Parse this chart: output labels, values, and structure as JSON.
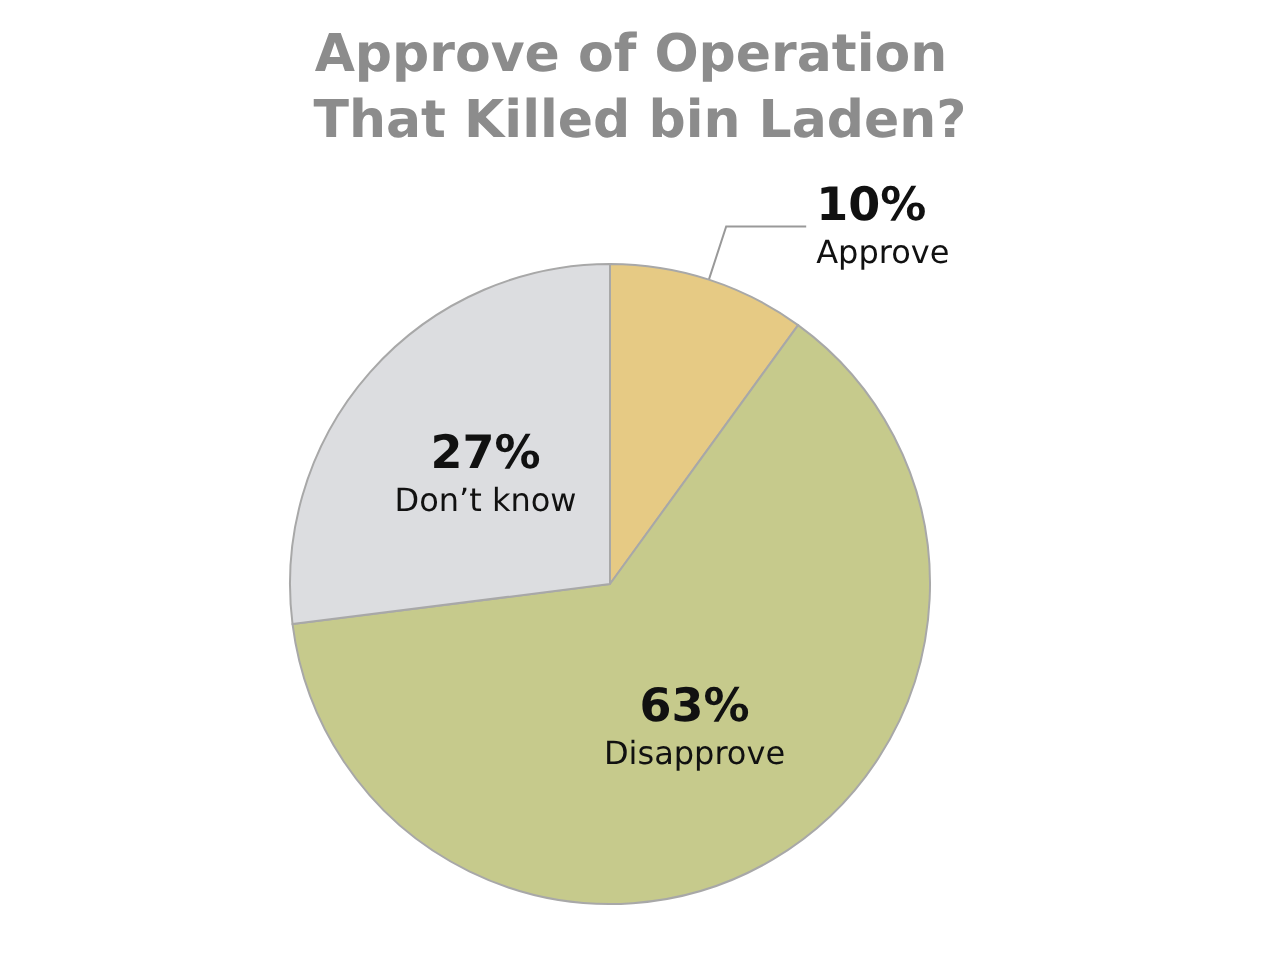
{
  "chart_data": {
    "type": "pie",
    "title": "Approve of Operation That Killed bin Laden?",
    "categories": [
      "Approve",
      "Disapprove",
      "Don’t know"
    ],
    "values": [
      10,
      63,
      27
    ],
    "colors": [
      "#e6ca84",
      "#c6ca8c",
      "#dcdde0"
    ],
    "value_labels": [
      "10%",
      "63%",
      "27%"
    ]
  }
}
